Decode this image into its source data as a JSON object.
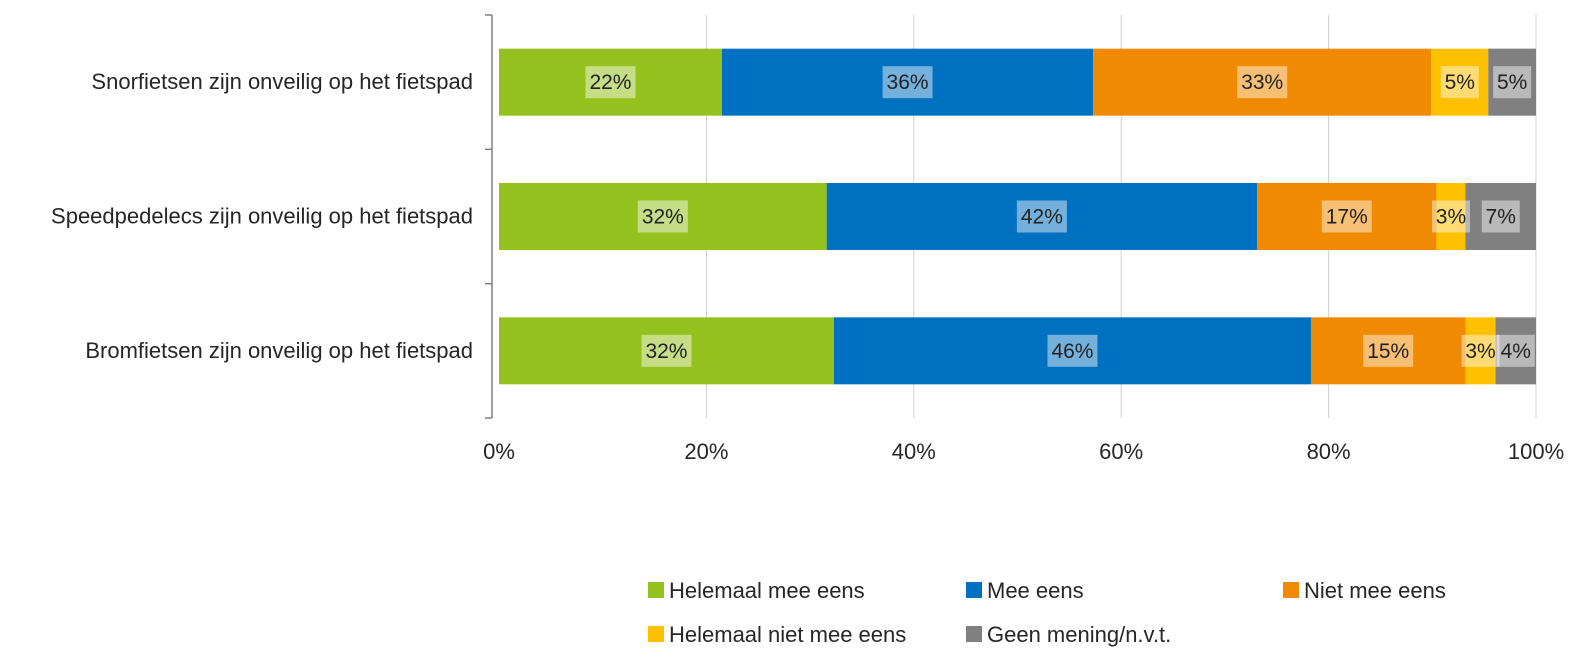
{
  "chart_data": {
    "type": "bar",
    "orientation": "horizontal",
    "stacked": "percent",
    "categories": [
      "Snorfietsen zijn onveilig op het fietspad",
      "Speedpedelecs zijn onveilig op het fietspad",
      "Bromfietsen zijn onveilig op het fietspad"
    ],
    "series": [
      {
        "name": "Helemaal mee eens",
        "color": "#95c11f",
        "values": [
          0.215,
          0.316,
          0.323
        ],
        "labels": [
          "22%",
          "32%",
          "32%"
        ]
      },
      {
        "name": "Mee eens",
        "color": "#0070c0",
        "values": [
          0.358,
          0.415,
          0.46
        ],
        "labels": [
          "36%",
          "42%",
          "46%"
        ]
      },
      {
        "name": "Niet mee eens",
        "color": "#f08a00",
        "values": [
          0.326,
          0.173,
          0.149
        ],
        "labels": [
          "33%",
          "17%",
          "15%"
        ]
      },
      {
        "name": "Helemaal niet mee eens",
        "color": "#ffc000",
        "values": [
          0.055,
          0.028,
          0.029
        ],
        "labels": [
          "5%",
          "3%",
          "3%"
        ]
      },
      {
        "name": "Geen mening/n.v.t.",
        "color": "#808080",
        "values": [
          0.046,
          0.068,
          0.039
        ],
        "labels": [
          "5%",
          "7%",
          "4%"
        ]
      }
    ],
    "x_ticks": [
      "0%",
      "20%",
      "40%",
      "60%",
      "80%",
      "100%"
    ],
    "xlim": [
      0,
      1
    ],
    "grid": true,
    "legend_position": "bottom"
  }
}
